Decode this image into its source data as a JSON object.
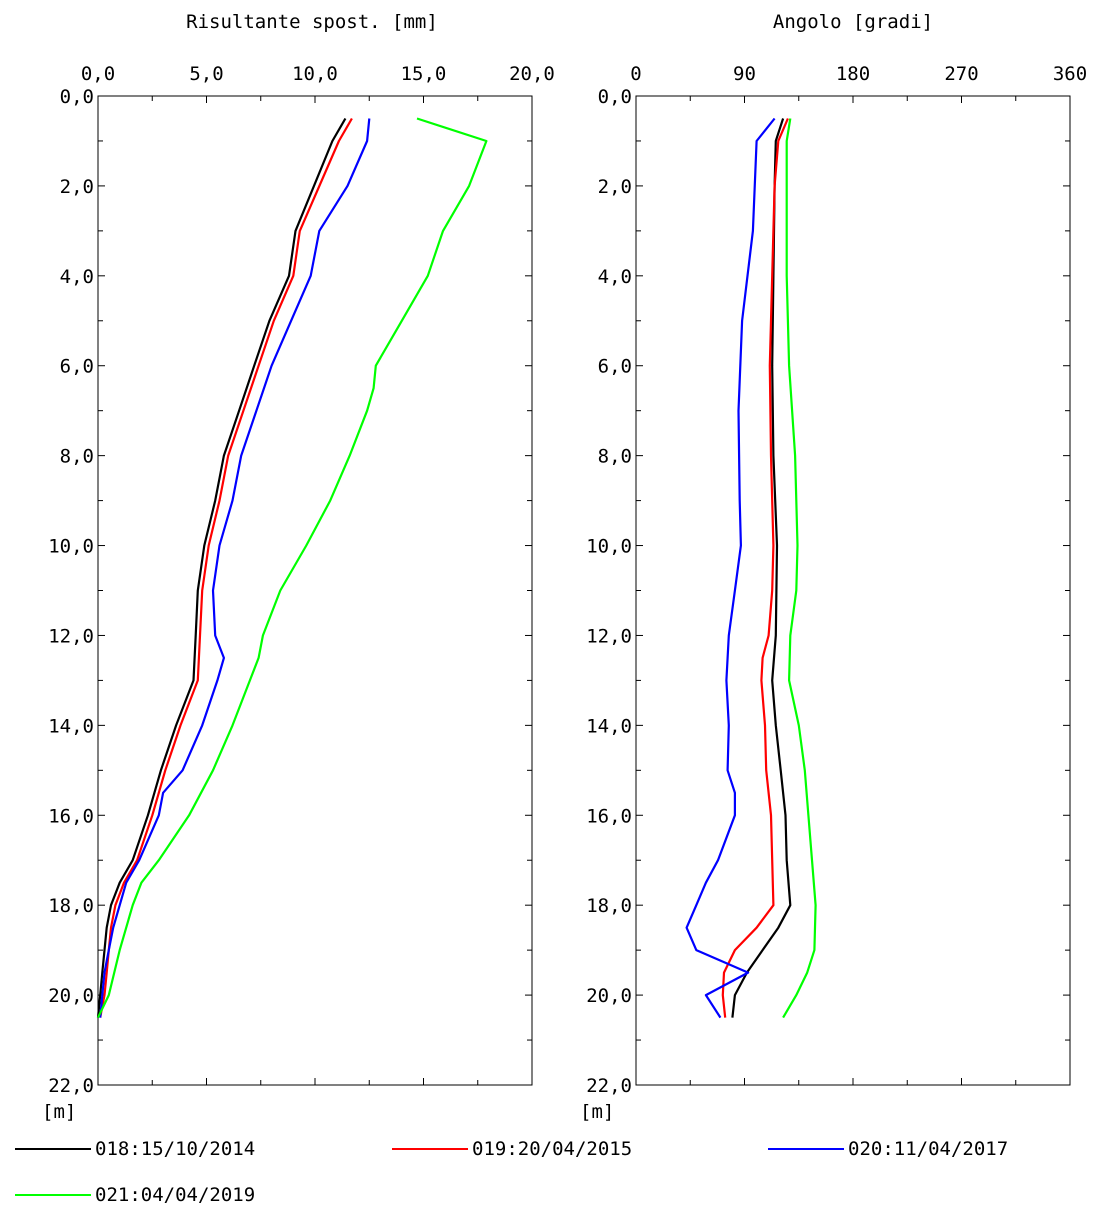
{
  "chart_data": [
    {
      "type": "line",
      "title": "Risultante spost. [mm]",
      "ylabel": "[m]",
      "xlim": [
        0,
        20
      ],
      "ylim": [
        0,
        22
      ],
      "x_ticks": [
        "0,0",
        "5,0",
        "10,0",
        "15,0",
        "20,0"
      ],
      "y_ticks": [
        "0,0",
        "2,0",
        "4,0",
        "6,0",
        "8,0",
        "10,0",
        "12,0",
        "14,0",
        "16,0",
        "18,0",
        "20,0",
        "22,0"
      ],
      "series": [
        {
          "name": "018:15/10/2014",
          "color": "#000000",
          "depth": [
            0.5,
            1.0,
            3.0,
            4.0,
            5.0,
            6.0,
            7.0,
            8.0,
            9.0,
            10.0,
            11.0,
            12.0,
            13.0,
            14.0,
            15.0,
            16.0,
            17.0,
            17.5,
            18.0,
            18.5,
            19.0,
            19.5,
            20.0,
            20.5
          ],
          "values": [
            11.4,
            10.8,
            9.1,
            8.8,
            7.9,
            7.2,
            6.5,
            5.8,
            5.4,
            4.9,
            4.6,
            4.5,
            4.4,
            3.6,
            2.9,
            2.3,
            1.6,
            1.0,
            0.6,
            0.4,
            0.3,
            0.2,
            0.1,
            0.0
          ]
        },
        {
          "name": "019:20/04/2015",
          "color": "#ff0000",
          "depth": [
            0.5,
            1.0,
            3.0,
            4.0,
            5.0,
            6.0,
            7.0,
            8.0,
            9.0,
            10.0,
            11.0,
            12.0,
            13.0,
            14.0,
            15.0,
            16.0,
            17.0,
            17.5,
            18.0,
            18.5,
            19.0,
            19.5,
            20.0,
            20.5
          ],
          "values": [
            11.7,
            11.1,
            9.3,
            9.0,
            8.1,
            7.4,
            6.7,
            6.0,
            5.6,
            5.1,
            4.8,
            4.7,
            4.6,
            3.8,
            3.1,
            2.5,
            1.8,
            1.2,
            0.8,
            0.6,
            0.5,
            0.4,
            0.3,
            0.1
          ]
        },
        {
          "name": "020:11/04/2017",
          "color": "#0000ff",
          "depth": [
            0.5,
            1.0,
            2.0,
            3.0,
            4.0,
            5.0,
            6.0,
            7.0,
            8.0,
            9.0,
            10.0,
            11.0,
            12.0,
            12.5,
            13.0,
            14.0,
            15.0,
            15.5,
            16.0,
            17.0,
            17.5,
            18.0,
            18.5,
            19.0,
            19.5,
            20.0,
            20.5
          ],
          "values": [
            12.5,
            12.4,
            11.5,
            10.2,
            9.8,
            8.9,
            8.0,
            7.3,
            6.6,
            6.2,
            5.6,
            5.3,
            5.4,
            5.8,
            5.5,
            4.8,
            3.9,
            3.0,
            2.8,
            1.9,
            1.3,
            1.0,
            0.7,
            0.5,
            0.3,
            0.2,
            0.1
          ]
        },
        {
          "name": "021:04/04/2019",
          "color": "#00ff00",
          "depth": [
            0.5,
            1.0,
            2.0,
            3.0,
            4.0,
            5.0,
            6.0,
            6.5,
            7.0,
            8.0,
            9.0,
            10.0,
            11.0,
            12.0,
            12.5,
            13.0,
            14.0,
            15.0,
            16.0,
            17.0,
            17.5,
            18.0,
            19.0,
            20.0,
            20.5
          ],
          "values": [
            14.7,
            17.9,
            17.1,
            15.9,
            15.2,
            14.0,
            12.8,
            12.7,
            12.4,
            11.6,
            10.7,
            9.6,
            8.4,
            7.6,
            7.4,
            7.0,
            6.2,
            5.3,
            4.2,
            2.8,
            2.0,
            1.6,
            1.0,
            0.5,
            0.0
          ]
        }
      ]
    },
    {
      "type": "line",
      "title": "Angolo [gradi]",
      "ylabel": "[m]",
      "xlim": [
        0,
        360
      ],
      "ylim": [
        0,
        22
      ],
      "x_ticks": [
        "0",
        "90",
        "180",
        "270",
        "360"
      ],
      "y_ticks": [
        "0,0",
        "2,0",
        "4,0",
        "6,0",
        "8,0",
        "10,0",
        "12,0",
        "14,0",
        "16,0",
        "18,0",
        "20,0",
        "22,0"
      ],
      "series": [
        {
          "name": "018:15/10/2014",
          "color": "#000000",
          "depth": [
            0.5,
            1.0,
            2.0,
            4.0,
            6.0,
            8.0,
            10.0,
            12.0,
            13.0,
            14.0,
            15.0,
            16.0,
            17.0,
            18.0,
            18.5,
            19.0,
            19.5,
            20.0,
            20.5
          ],
          "values": [
            122,
            116,
            115,
            114,
            113,
            114,
            117,
            116,
            113,
            116,
            120,
            124,
            125,
            128,
            118,
            105,
            92,
            82,
            80
          ]
        },
        {
          "name": "019:20/04/2015",
          "color": "#ff0000",
          "depth": [
            0.5,
            1.0,
            2.0,
            4.0,
            6.0,
            8.0,
            10.0,
            11.0,
            12.0,
            12.5,
            13.0,
            14.0,
            15.0,
            16.0,
            17.0,
            18.0,
            18.5,
            19.0,
            19.5,
            20.0,
            20.5
          ],
          "values": [
            126,
            118,
            115,
            113,
            111,
            112,
            114,
            113,
            110,
            105,
            104,
            107,
            108,
            112,
            113,
            114,
            100,
            82,
            73,
            72,
            74
          ]
        },
        {
          "name": "020:11/04/2017",
          "color": "#0000ff",
          "depth": [
            0.5,
            1.0,
            3.0,
            5.0,
            7.0,
            9.0,
            10.0,
            11.0,
            12.0,
            13.0,
            14.0,
            15.0,
            15.5,
            16.0,
            17.0,
            17.5,
            18.0,
            18.5,
            19.0,
            19.5,
            20.0,
            20.5
          ],
          "values": [
            115,
            100,
            97,
            88,
            85,
            86,
            87,
            82,
            77,
            75,
            77,
            76,
            82,
            82,
            68,
            58,
            50,
            42,
            50,
            93,
            58,
            70
          ]
        },
        {
          "name": "021:04/04/2019",
          "color": "#00ff00",
          "depth": [
            0.5,
            1.0,
            2.0,
            4.0,
            6.0,
            8.0,
            10.0,
            11.0,
            12.0,
            13.0,
            14.0,
            15.0,
            16.0,
            17.0,
            18.0,
            19.0,
            19.5,
            20.0,
            20.5
          ],
          "values": [
            128,
            125,
            125,
            125,
            127,
            132,
            134,
            133,
            128,
            127,
            135,
            140,
            143,
            146,
            149,
            148,
            142,
            133,
            122
          ]
        }
      ]
    }
  ],
  "legend": [
    {
      "label": "018:15/10/2014",
      "color": "#000000"
    },
    {
      "label": "019:20/04/2015",
      "color": "#ff0000"
    },
    {
      "label": "020:11/04/2017",
      "color": "#0000ff"
    },
    {
      "label": "021:04/04/2019",
      "color": "#00ff00"
    }
  ]
}
